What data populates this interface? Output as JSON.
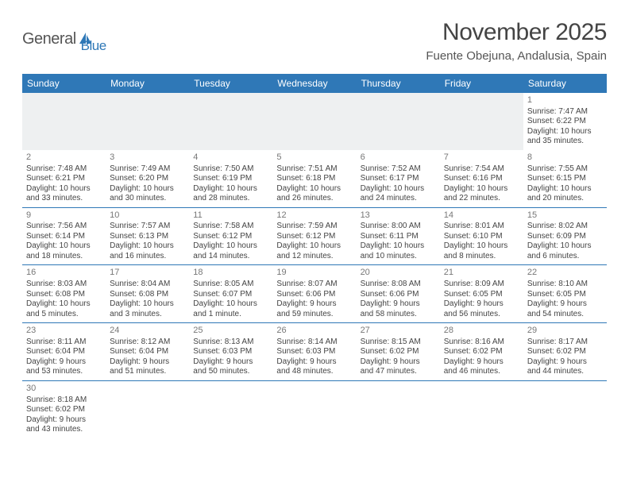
{
  "logo": {
    "text1": "General",
    "text2": "Blue"
  },
  "title": "November 2025",
  "location": "Fuente Obejuna, Andalusia, Spain",
  "colors": {
    "header_bg": "#2f78b7",
    "header_text": "#ffffff",
    "row_border": "#2f78b7",
    "blank_row_bg": "#eef0f1",
    "page_bg": "#ffffff",
    "logo_gray": "#555555",
    "logo_blue": "#2f78b7"
  },
  "weekdays": [
    "Sunday",
    "Monday",
    "Tuesday",
    "Wednesday",
    "Thursday",
    "Friday",
    "Saturday"
  ],
  "weeks": [
    [
      null,
      null,
      null,
      null,
      null,
      null,
      {
        "n": "1",
        "sr": "Sunrise: 7:47 AM",
        "ss": "Sunset: 6:22 PM",
        "d1": "Daylight: 10 hours",
        "d2": "and 35 minutes."
      }
    ],
    [
      {
        "n": "2",
        "sr": "Sunrise: 7:48 AM",
        "ss": "Sunset: 6:21 PM",
        "d1": "Daylight: 10 hours",
        "d2": "and 33 minutes."
      },
      {
        "n": "3",
        "sr": "Sunrise: 7:49 AM",
        "ss": "Sunset: 6:20 PM",
        "d1": "Daylight: 10 hours",
        "d2": "and 30 minutes."
      },
      {
        "n": "4",
        "sr": "Sunrise: 7:50 AM",
        "ss": "Sunset: 6:19 PM",
        "d1": "Daylight: 10 hours",
        "d2": "and 28 minutes."
      },
      {
        "n": "5",
        "sr": "Sunrise: 7:51 AM",
        "ss": "Sunset: 6:18 PM",
        "d1": "Daylight: 10 hours",
        "d2": "and 26 minutes."
      },
      {
        "n": "6",
        "sr": "Sunrise: 7:52 AM",
        "ss": "Sunset: 6:17 PM",
        "d1": "Daylight: 10 hours",
        "d2": "and 24 minutes."
      },
      {
        "n": "7",
        "sr": "Sunrise: 7:54 AM",
        "ss": "Sunset: 6:16 PM",
        "d1": "Daylight: 10 hours",
        "d2": "and 22 minutes."
      },
      {
        "n": "8",
        "sr": "Sunrise: 7:55 AM",
        "ss": "Sunset: 6:15 PM",
        "d1": "Daylight: 10 hours",
        "d2": "and 20 minutes."
      }
    ],
    [
      {
        "n": "9",
        "sr": "Sunrise: 7:56 AM",
        "ss": "Sunset: 6:14 PM",
        "d1": "Daylight: 10 hours",
        "d2": "and 18 minutes."
      },
      {
        "n": "10",
        "sr": "Sunrise: 7:57 AM",
        "ss": "Sunset: 6:13 PM",
        "d1": "Daylight: 10 hours",
        "d2": "and 16 minutes."
      },
      {
        "n": "11",
        "sr": "Sunrise: 7:58 AM",
        "ss": "Sunset: 6:12 PM",
        "d1": "Daylight: 10 hours",
        "d2": "and 14 minutes."
      },
      {
        "n": "12",
        "sr": "Sunrise: 7:59 AM",
        "ss": "Sunset: 6:12 PM",
        "d1": "Daylight: 10 hours",
        "d2": "and 12 minutes."
      },
      {
        "n": "13",
        "sr": "Sunrise: 8:00 AM",
        "ss": "Sunset: 6:11 PM",
        "d1": "Daylight: 10 hours",
        "d2": "and 10 minutes."
      },
      {
        "n": "14",
        "sr": "Sunrise: 8:01 AM",
        "ss": "Sunset: 6:10 PM",
        "d1": "Daylight: 10 hours",
        "d2": "and 8 minutes."
      },
      {
        "n": "15",
        "sr": "Sunrise: 8:02 AM",
        "ss": "Sunset: 6:09 PM",
        "d1": "Daylight: 10 hours",
        "d2": "and 6 minutes."
      }
    ],
    [
      {
        "n": "16",
        "sr": "Sunrise: 8:03 AM",
        "ss": "Sunset: 6:08 PM",
        "d1": "Daylight: 10 hours",
        "d2": "and 5 minutes."
      },
      {
        "n": "17",
        "sr": "Sunrise: 8:04 AM",
        "ss": "Sunset: 6:08 PM",
        "d1": "Daylight: 10 hours",
        "d2": "and 3 minutes."
      },
      {
        "n": "18",
        "sr": "Sunrise: 8:05 AM",
        "ss": "Sunset: 6:07 PM",
        "d1": "Daylight: 10 hours",
        "d2": "and 1 minute."
      },
      {
        "n": "19",
        "sr": "Sunrise: 8:07 AM",
        "ss": "Sunset: 6:06 PM",
        "d1": "Daylight: 9 hours",
        "d2": "and 59 minutes."
      },
      {
        "n": "20",
        "sr": "Sunrise: 8:08 AM",
        "ss": "Sunset: 6:06 PM",
        "d1": "Daylight: 9 hours",
        "d2": "and 58 minutes."
      },
      {
        "n": "21",
        "sr": "Sunrise: 8:09 AM",
        "ss": "Sunset: 6:05 PM",
        "d1": "Daylight: 9 hours",
        "d2": "and 56 minutes."
      },
      {
        "n": "22",
        "sr": "Sunrise: 8:10 AM",
        "ss": "Sunset: 6:05 PM",
        "d1": "Daylight: 9 hours",
        "d2": "and 54 minutes."
      }
    ],
    [
      {
        "n": "23",
        "sr": "Sunrise: 8:11 AM",
        "ss": "Sunset: 6:04 PM",
        "d1": "Daylight: 9 hours",
        "d2": "and 53 minutes."
      },
      {
        "n": "24",
        "sr": "Sunrise: 8:12 AM",
        "ss": "Sunset: 6:04 PM",
        "d1": "Daylight: 9 hours",
        "d2": "and 51 minutes."
      },
      {
        "n": "25",
        "sr": "Sunrise: 8:13 AM",
        "ss": "Sunset: 6:03 PM",
        "d1": "Daylight: 9 hours",
        "d2": "and 50 minutes."
      },
      {
        "n": "26",
        "sr": "Sunrise: 8:14 AM",
        "ss": "Sunset: 6:03 PM",
        "d1": "Daylight: 9 hours",
        "d2": "and 48 minutes."
      },
      {
        "n": "27",
        "sr": "Sunrise: 8:15 AM",
        "ss": "Sunset: 6:02 PM",
        "d1": "Daylight: 9 hours",
        "d2": "and 47 minutes."
      },
      {
        "n": "28",
        "sr": "Sunrise: 8:16 AM",
        "ss": "Sunset: 6:02 PM",
        "d1": "Daylight: 9 hours",
        "d2": "and 46 minutes."
      },
      {
        "n": "29",
        "sr": "Sunrise: 8:17 AM",
        "ss": "Sunset: 6:02 PM",
        "d1": "Daylight: 9 hours",
        "d2": "and 44 minutes."
      }
    ],
    [
      {
        "n": "30",
        "sr": "Sunrise: 8:18 AM",
        "ss": "Sunset: 6:02 PM",
        "d1": "Daylight: 9 hours",
        "d2": "and 43 minutes."
      },
      null,
      null,
      null,
      null,
      null,
      null
    ]
  ]
}
